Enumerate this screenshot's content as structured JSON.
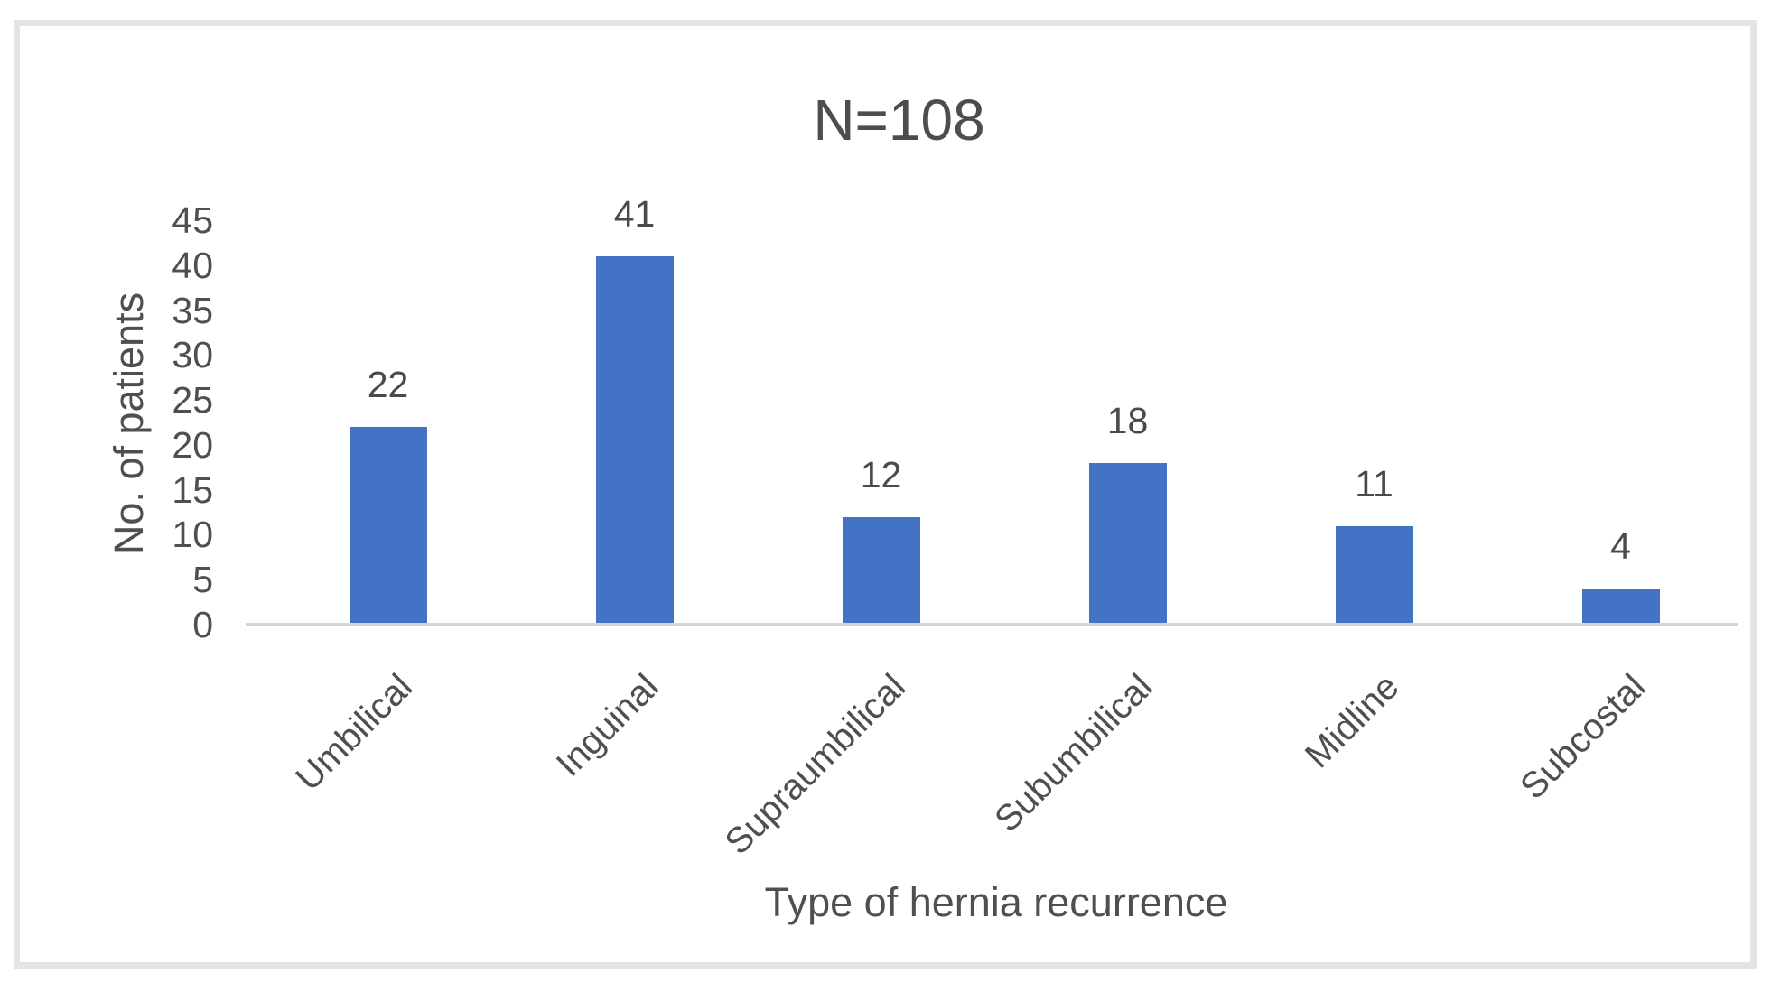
{
  "chart_data": {
    "type": "bar",
    "title": "N=108",
    "xlabel": "Type of hernia recurrence",
    "ylabel": "No. of patients",
    "categories": [
      "Umbilical",
      "Inguinal",
      "Supraumbilical",
      "Subumbilical",
      "Midline",
      "Subcostal"
    ],
    "values": [
      22,
      41,
      12,
      18,
      11,
      4
    ],
    "data_labels": [
      "22",
      "41",
      "12",
      "18",
      "11",
      "4"
    ],
    "yticks": [
      0,
      5,
      10,
      15,
      20,
      25,
      30,
      35,
      40,
      45
    ],
    "ylim": [
      0,
      45
    ],
    "grid": "off",
    "legend": "none",
    "bar_color": "#4472c4",
    "text_color": "#4f4f4f",
    "axis_line_color": "#d6d6d6",
    "frame_border_color": "#e4e4e4",
    "background_color": "#ffffff"
  }
}
